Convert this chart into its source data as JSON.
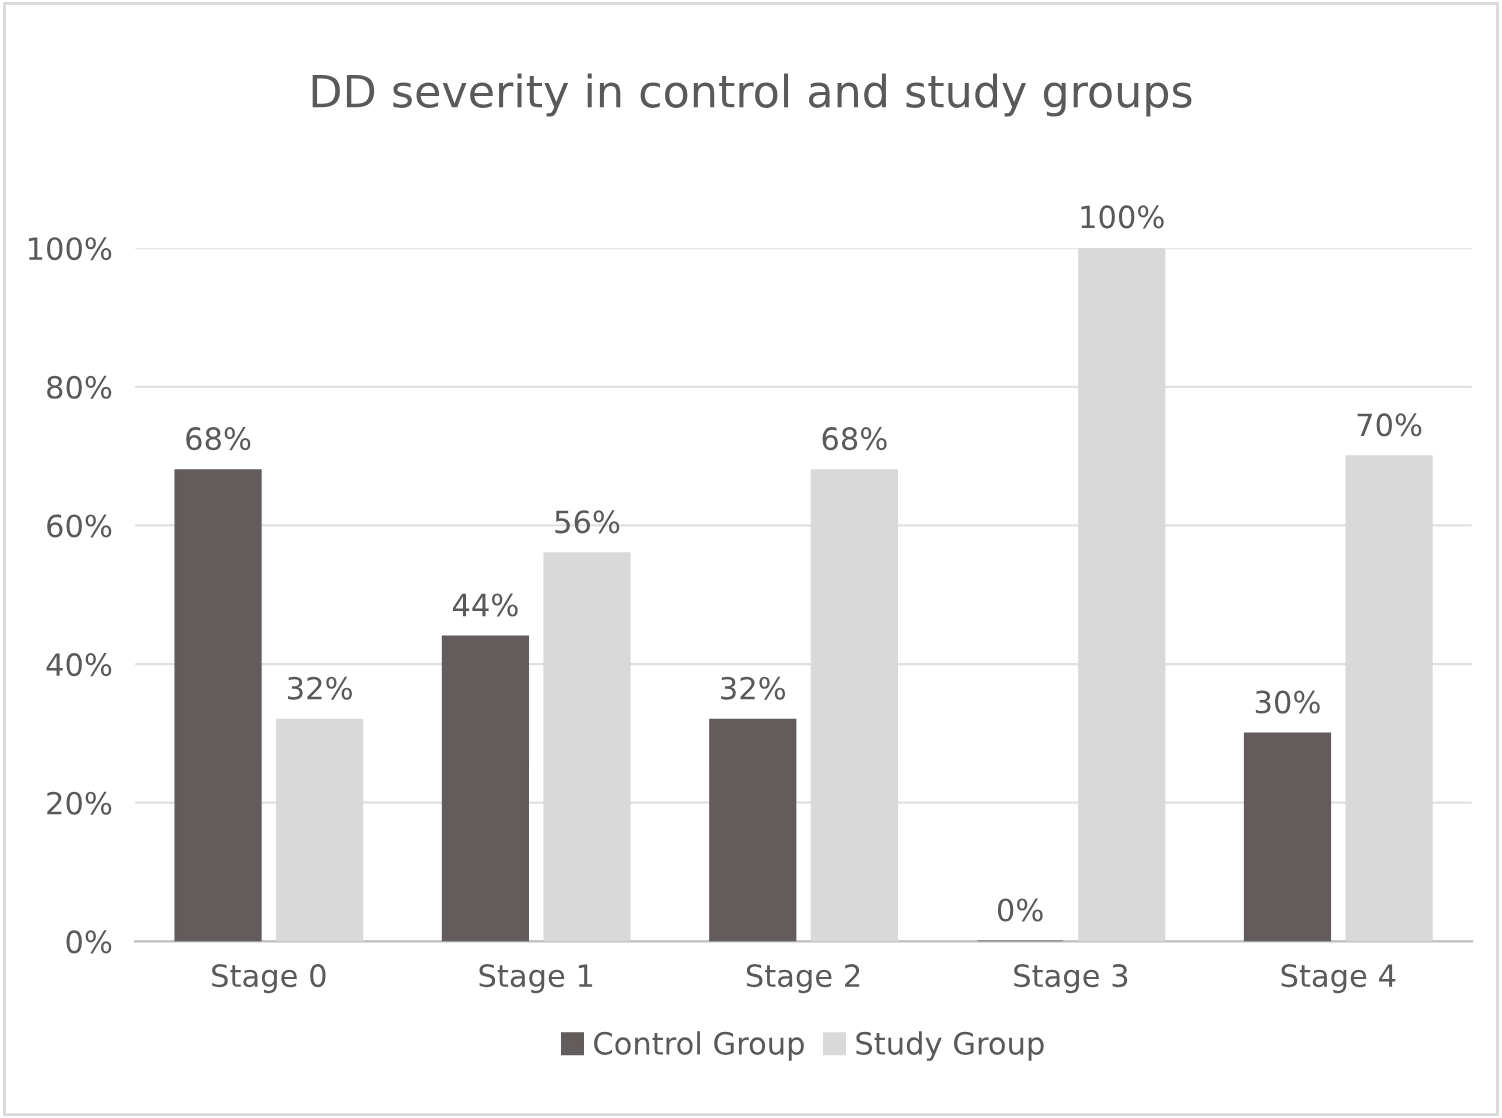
{
  "chart_data": {
    "type": "bar",
    "title": "DD severity in control and study groups",
    "categories": [
      "Stage 0",
      "Stage 1",
      "Stage 2",
      "Stage 3",
      "Stage 4"
    ],
    "series": [
      {
        "name": "Control Group",
        "color": "#625c5c",
        "values": [
          68,
          44,
          32,
          0,
          30
        ],
        "value_labels": [
          "68%",
          "44%",
          "32%",
          "0%",
          "30%"
        ]
      },
      {
        "name": "Study Group",
        "color": "#d9d9d9",
        "values": [
          32,
          56,
          68,
          100,
          70
        ],
        "value_labels": [
          "32%",
          "56%",
          "68%",
          "100%",
          "70%"
        ]
      }
    ],
    "ylim": [
      0,
      100
    ],
    "yticks": [
      {
        "value": 0,
        "label": "0%"
      },
      {
        "value": 20,
        "label": "20%"
      },
      {
        "value": 40,
        "label": "40%"
      },
      {
        "value": 60,
        "label": "60%"
      },
      {
        "value": 80,
        "label": "80%"
      },
      {
        "value": 100,
        "label": "100%"
      }
    ],
    "grid": "y",
    "legend": "bottom"
  }
}
